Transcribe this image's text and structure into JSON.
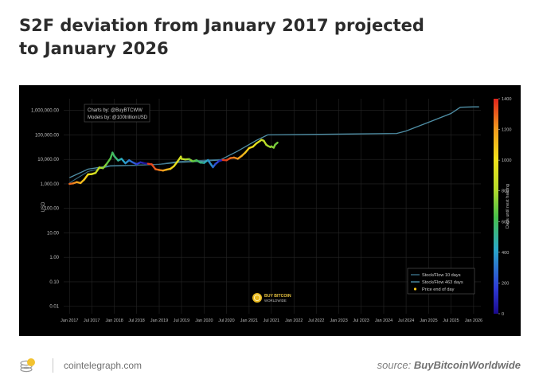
{
  "header": {
    "title_line1": "S2F deviation from January 2017 projected",
    "title_line2": "to January 2026"
  },
  "footer": {
    "site": "cointelegraph.com",
    "source_prefix": "source:",
    "source_name": "BuyBitcoinWorldwide"
  },
  "chart_data": {
    "type": "line",
    "ylabel": "USD",
    "yscale": "log",
    "ylim": [
      0.005,
      3000000
    ],
    "xlim": [
      "2016-11-15",
      "2026-03-01"
    ],
    "y_ticks": [
      {
        "value": 1000000,
        "label": "1,000,000.00"
      },
      {
        "value": 100000,
        "label": "100,000.00"
      },
      {
        "value": 10000,
        "label": "10,000.00"
      },
      {
        "value": 1000,
        "label": "1,000.00"
      },
      {
        "value": 100,
        "label": "100.00"
      },
      {
        "value": 10,
        "label": "10.00"
      },
      {
        "value": 1,
        "label": "1.00"
      },
      {
        "value": 0.1,
        "label": "0.10"
      },
      {
        "value": 0.01,
        "label": "0.01"
      }
    ],
    "x_ticks": [
      {
        "date": "2017-01-01",
        "label": "Jan 2017"
      },
      {
        "date": "2017-07-01",
        "label": "Jul 2017"
      },
      {
        "date": "2018-01-01",
        "label": "Jan 2018"
      },
      {
        "date": "2018-07-01",
        "label": "Jul 2018"
      },
      {
        "date": "2019-01-01",
        "label": "Jan 2019"
      },
      {
        "date": "2019-07-01",
        "label": "Jul 2019"
      },
      {
        "date": "2020-01-01",
        "label": "Jan 2020"
      },
      {
        "date": "2020-07-01",
        "label": "Jul 2020"
      },
      {
        "date": "2021-01-01",
        "label": "Jan 2021"
      },
      {
        "date": "2021-07-01",
        "label": "Jul 2021"
      },
      {
        "date": "2022-01-01",
        "label": "Jan 2022"
      },
      {
        "date": "2022-07-01",
        "label": "Jul 2022"
      },
      {
        "date": "2023-01-01",
        "label": "Jan 2023"
      },
      {
        "date": "2023-07-01",
        "label": "Jul 2023"
      },
      {
        "date": "2024-01-01",
        "label": "Jan 2024"
      },
      {
        "date": "2024-07-01",
        "label": "Jul 2024"
      },
      {
        "date": "2025-01-01",
        "label": "Jan 2025"
      },
      {
        "date": "2025-07-01",
        "label": "Jul 2025"
      },
      {
        "date": "2026-01-01",
        "label": "Jan 2026"
      }
    ],
    "grid": true,
    "annotation_lines": [
      "Charts by: @BuyBTCWW",
      "Models by: @100trillionUSD"
    ],
    "watermark_lines": [
      "BUY BITCOIN",
      "WORLDWIDE"
    ],
    "legend_position": "bottom-right",
    "series": [
      {
        "name": "Stock/Flow 10 days",
        "color": "#3a6f86",
        "points": [
          [
            "2017-01-01",
            1100
          ],
          [
            "2017-06-01",
            3200
          ],
          [
            "2017-12-01",
            5300
          ],
          [
            "2018-06-01",
            5600
          ],
          [
            "2019-01-01",
            6400
          ],
          [
            "2019-06-01",
            8300
          ],
          [
            "2020-01-01",
            9200
          ],
          [
            "2020-05-11",
            10000
          ]
        ]
      },
      {
        "name": "Stock/Flow 463 days",
        "color": "#4f8fa6",
        "points": [
          [
            "2017-01-01",
            1800
          ],
          [
            "2017-06-01",
            4000
          ],
          [
            "2017-12-01",
            5500
          ],
          [
            "2018-06-01",
            5700
          ],
          [
            "2019-01-01",
            6300
          ],
          [
            "2019-06-01",
            7500
          ],
          [
            "2020-01-01",
            8500
          ],
          [
            "2020-05-11",
            9500
          ],
          [
            "2020-10-01",
            22000
          ],
          [
            "2021-03-01",
            60000
          ],
          [
            "2021-06-01",
            100000
          ],
          [
            "2022-06-01",
            105000
          ],
          [
            "2023-06-01",
            110000
          ],
          [
            "2024-04-15",
            115000
          ],
          [
            "2024-07-01",
            145000
          ],
          [
            "2025-01-01",
            330000
          ],
          [
            "2025-07-01",
            750000
          ],
          [
            "2025-09-15",
            1350000
          ],
          [
            "2026-01-01",
            1400000
          ],
          [
            "2026-02-15",
            1400000
          ]
        ]
      },
      {
        "name": "Price end of day",
        "color": "#f5c518",
        "points": [
          [
            "2017-01-01",
            998,
            0.92
          ],
          [
            "2017-02-01",
            1050,
            0.88
          ],
          [
            "2017-03-01",
            1180,
            0.84
          ],
          [
            "2017-04-01",
            1080,
            0.8
          ],
          [
            "2017-05-01",
            1500,
            0.76
          ],
          [
            "2017-06-01",
            2450,
            0.71
          ],
          [
            "2017-07-01",
            2500,
            0.67
          ],
          [
            "2017-08-01",
            2800,
            0.62
          ],
          [
            "2017-09-01",
            4700,
            0.57
          ],
          [
            "2017-10-01",
            4400,
            0.53
          ],
          [
            "2017-11-01",
            6700,
            0.48
          ],
          [
            "2017-12-01",
            11000,
            0.44
          ],
          [
            "2017-12-17",
            19000,
            0.42
          ],
          [
            "2018-01-01",
            13500,
            0.4
          ],
          [
            "2018-02-01",
            9000,
            0.35
          ],
          [
            "2018-03-01",
            10500,
            0.3
          ],
          [
            "2018-04-01",
            7000,
            0.26
          ],
          [
            "2018-05-01",
            9200,
            0.21
          ],
          [
            "2018-06-01",
            7500,
            0.17
          ],
          [
            "2018-07-01",
            6400,
            0.12
          ],
          [
            "2018-08-01",
            7600,
            0.07
          ],
          [
            "2018-09-01",
            7000,
            0.02
          ],
          [
            "2018-10-01",
            6600,
            0.97
          ],
          [
            "2018-11-01",
            6300,
            0.95
          ],
          [
            "2018-12-01",
            4000,
            0.92
          ],
          [
            "2019-01-01",
            3700,
            0.88
          ],
          [
            "2019-02-01",
            3500,
            0.84
          ],
          [
            "2019-03-01",
            3800,
            0.8
          ],
          [
            "2019-04-01",
            4100,
            0.75
          ],
          [
            "2019-05-01",
            5300,
            0.7
          ],
          [
            "2019-06-01",
            8500,
            0.66
          ],
          [
            "2019-06-26",
            13000,
            0.63
          ],
          [
            "2019-07-01",
            10500,
            0.62
          ],
          [
            "2019-08-01",
            10000,
            0.57
          ],
          [
            "2019-09-01",
            10300,
            0.52
          ],
          [
            "2019-10-01",
            8300,
            0.47
          ],
          [
            "2019-11-01",
            9200,
            0.42
          ],
          [
            "2019-12-01",
            7400,
            0.37
          ],
          [
            "2020-01-01",
            7200,
            0.32
          ],
          [
            "2020-02-01",
            9400,
            0.26
          ],
          [
            "2020-03-13",
            4800,
            0.19
          ],
          [
            "2020-04-01",
            6400,
            0.14
          ],
          [
            "2020-05-01",
            8600,
            0.08
          ],
          [
            "2020-06-01",
            9500,
            0.98
          ],
          [
            "2020-07-01",
            9200,
            0.95
          ],
          [
            "2020-08-01",
            11300,
            0.91
          ],
          [
            "2020-09-01",
            11900,
            0.88
          ],
          [
            "2020-10-01",
            10600,
            0.84
          ],
          [
            "2020-11-01",
            13800,
            0.81
          ],
          [
            "2020-12-01",
            19000,
            0.77
          ],
          [
            "2021-01-01",
            29000,
            0.74
          ],
          [
            "2021-02-01",
            33000,
            0.7
          ],
          [
            "2021-03-01",
            45000,
            0.66
          ],
          [
            "2021-04-13",
            63000,
            0.62
          ],
          [
            "2021-05-01",
            57000,
            0.6
          ],
          [
            "2021-05-20",
            40000,
            0.58
          ],
          [
            "2021-06-01",
            36000,
            0.56
          ],
          [
            "2021-06-22",
            32000,
            0.54
          ],
          [
            "2021-07-01",
            34000,
            0.53
          ],
          [
            "2021-07-20",
            30000,
            0.52
          ],
          [
            "2021-08-01",
            40000,
            0.5
          ],
          [
            "2021-08-20",
            48000,
            0.48
          ]
        ]
      }
    ],
    "colorbar": {
      "label": "Days until next halving",
      "ticks": [
        0,
        200,
        400,
        600,
        800,
        1000,
        1200,
        1400
      ],
      "range": [
        0,
        1400
      ]
    }
  }
}
